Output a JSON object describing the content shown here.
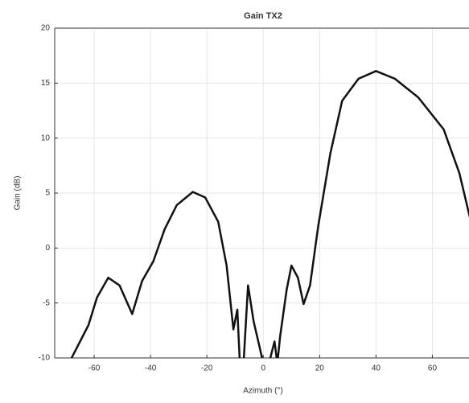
{
  "chart_data": {
    "type": "line",
    "title": "Gain TX2",
    "x_label": "Azimuth (°)",
    "y_label": "Gain (dB)",
    "x": [
      -69,
      -62,
      -59,
      -55,
      -51,
      -46.5,
      -43,
      -39,
      -35,
      -30.7,
      -25,
      -20.6,
      -16,
      -13,
      -10.6,
      -9.2,
      -8.3,
      -7,
      -5.4,
      -3.4,
      -1.4,
      0,
      2,
      4,
      5,
      6,
      8.3,
      10,
      12.3,
      14.3,
      16.6,
      19.5,
      23.8,
      28,
      33.8,
      40,
      46.7,
      55,
      64,
      69.6,
      73.3
    ],
    "series": [
      {
        "name": "Gain TX2",
        "color": "#111111",
        "values": [
          -10.5,
          -7,
          -4.5,
          -2.7,
          -3.4,
          -6,
          -3,
          -1.2,
          1.7,
          3.9,
          5.1,
          4.6,
          2.4,
          -1.6,
          -7.4,
          -5.6,
          -10.5,
          -10.5,
          -3.4,
          -6.7,
          -8.9,
          -10.5,
          -10.5,
          -8.5,
          -10.5,
          -8,
          -3.8,
          -1.6,
          -2.7,
          -5.1,
          -3.4,
          2,
          8.6,
          13.4,
          15.4,
          16.1,
          15.4,
          13.7,
          10.8,
          6.8,
          2.8
        ]
      }
    ],
    "xlim": [
      -74,
      73
    ],
    "ylim": [
      -10,
      20
    ],
    "xticks": [
      -60,
      -40,
      -20,
      0,
      20,
      40,
      60
    ],
    "yticks": [
      -10,
      -5,
      0,
      5,
      10,
      15,
      20
    ],
    "grid": true
  }
}
